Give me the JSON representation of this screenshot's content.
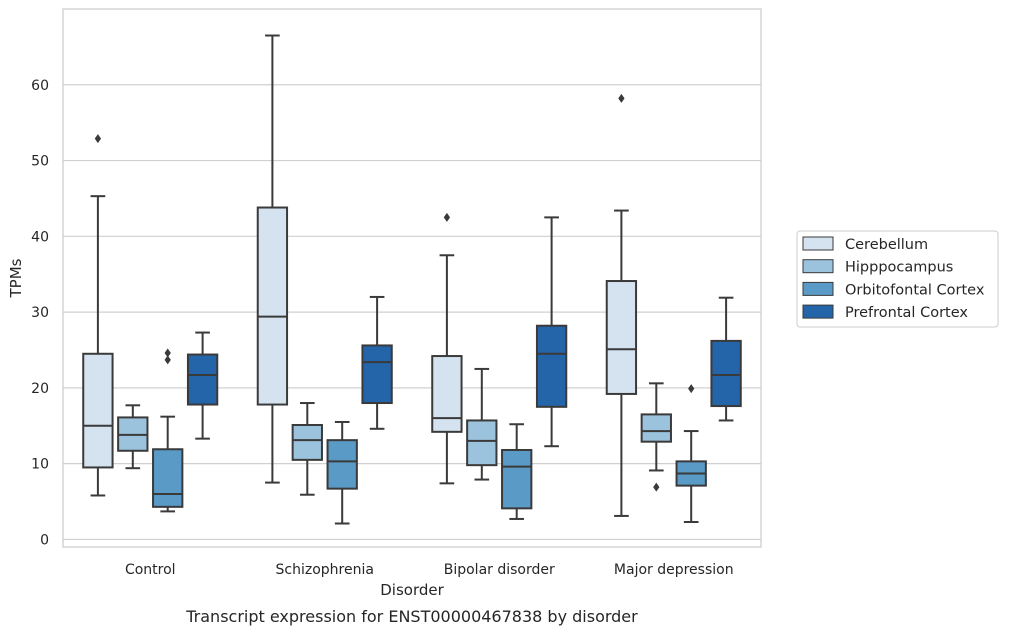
{
  "chart_data": {
    "type": "box",
    "title": "",
    "caption": "Transcript expression for ENST00000467838 by disorder",
    "xlabel": "Disorder",
    "ylabel": "TPMs",
    "ylim": [
      -1,
      70
    ],
    "yticks": [
      0,
      10,
      20,
      30,
      40,
      50,
      60
    ],
    "grid": "horizontal",
    "legend_position": "center-right",
    "categories": [
      "Control",
      "Schizophrenia",
      "Bipolar disorder",
      "Major depression"
    ],
    "series": [
      {
        "name": "Cerebellum",
        "color": "#d5e3f1",
        "boxes": [
          {
            "whislo": 5.8,
            "q1": 9.5,
            "med": 15.0,
            "q3": 24.5,
            "whishi": 45.3,
            "fliers": [
              52.9
            ]
          },
          {
            "whislo": 7.5,
            "q1": 17.8,
            "med": 29.4,
            "q3": 43.8,
            "whishi": 66.5,
            "fliers": []
          },
          {
            "whislo": 7.4,
            "q1": 14.2,
            "med": 16.0,
            "q3": 24.2,
            "whishi": 37.5,
            "fliers": [
              42.5
            ]
          },
          {
            "whislo": 3.1,
            "q1": 19.2,
            "med": 25.1,
            "q3": 34.1,
            "whishi": 43.4,
            "fliers": [
              58.2
            ]
          }
        ]
      },
      {
        "name": "Hipppocampus",
        "color": "#9cc3de",
        "boxes": [
          {
            "whislo": 9.4,
            "q1": 11.7,
            "med": 13.8,
            "q3": 16.1,
            "whishi": 17.7,
            "fliers": []
          },
          {
            "whislo": 5.9,
            "q1": 10.5,
            "med": 13.1,
            "q3": 15.1,
            "whishi": 18.0,
            "fliers": []
          },
          {
            "whislo": 7.9,
            "q1": 9.8,
            "med": 13.0,
            "q3": 15.7,
            "whishi": 22.5,
            "fliers": []
          },
          {
            "whislo": 9.1,
            "q1": 12.9,
            "med": 14.3,
            "q3": 16.5,
            "whishi": 20.6,
            "fliers": [
              6.9
            ]
          }
        ]
      },
      {
        "name": "Orbitofontal Cortex",
        "color": "#5a9ac6",
        "boxes": [
          {
            "whislo": 3.7,
            "q1": 4.3,
            "med": 6.0,
            "q3": 11.9,
            "whishi": 16.2,
            "fliers": [
              23.7,
              24.6
            ]
          },
          {
            "whislo": 2.1,
            "q1": 6.7,
            "med": 10.3,
            "q3": 13.1,
            "whishi": 15.5,
            "fliers": []
          },
          {
            "whislo": 2.7,
            "q1": 4.1,
            "med": 9.6,
            "q3": 11.8,
            "whishi": 15.2,
            "fliers": []
          },
          {
            "whislo": 2.3,
            "q1": 7.1,
            "med": 8.7,
            "q3": 10.3,
            "whishi": 14.3,
            "fliers": [
              19.9
            ]
          }
        ]
      },
      {
        "name": "Prefrontal Cortex",
        "color": "#2464a8",
        "boxes": [
          {
            "whislo": 13.3,
            "q1": 17.8,
            "med": 21.7,
            "q3": 24.4,
            "whishi": 27.3,
            "fliers": []
          },
          {
            "whislo": 14.6,
            "q1": 18.0,
            "med": 23.4,
            "q3": 25.6,
            "whishi": 32.0,
            "fliers": []
          },
          {
            "whislo": 12.3,
            "q1": 17.5,
            "med": 24.5,
            "q3": 28.2,
            "whishi": 42.5,
            "fliers": []
          },
          {
            "whislo": 15.7,
            "q1": 17.6,
            "med": 21.7,
            "q3": 26.2,
            "whishi": 31.9,
            "fliers": []
          }
        ]
      }
    ]
  }
}
